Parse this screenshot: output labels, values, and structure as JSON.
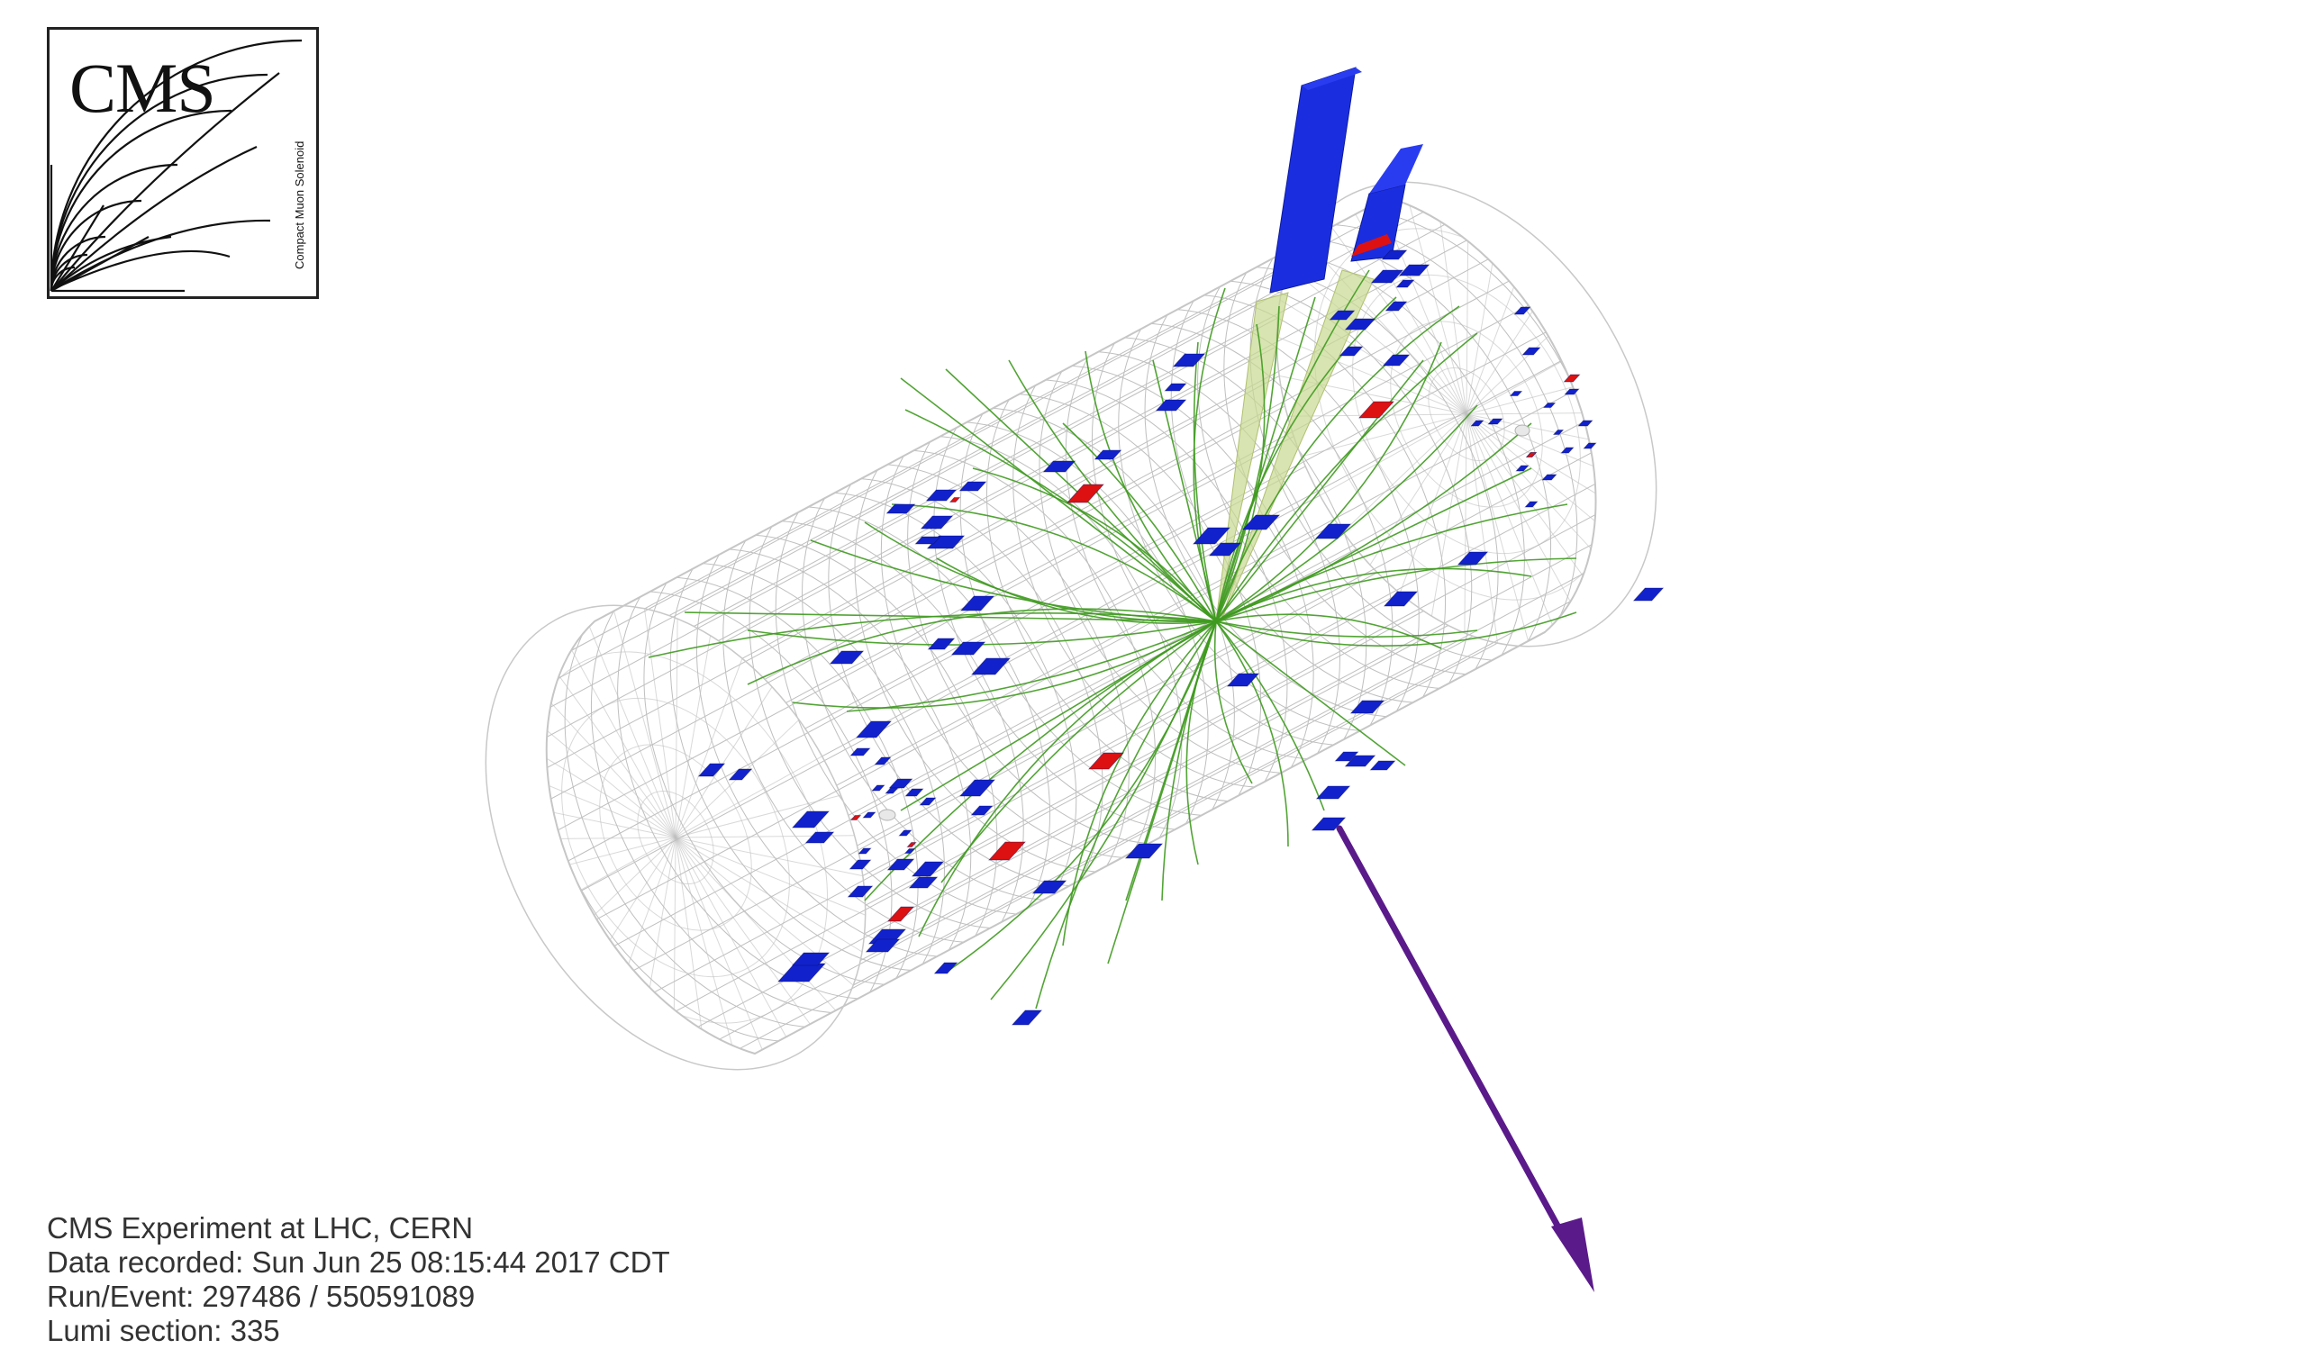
{
  "logo": {
    "text": "CMS",
    "subtext": "Compact Muon Solenoid"
  },
  "event_info": {
    "experiment": "CMS Experiment at LHC, CERN",
    "recorded": "Data recorded: Sun Jun 25 08:15:44 2017 CDT",
    "run_event": "Run/Event: 297486 / 550591089",
    "lumi_section": "Lumi section: 335"
  },
  "colors": {
    "track": "#3f9a1f",
    "ecal_deposit": "#dd1111",
    "hcal_deposit": "#1122cc",
    "jet_cone": "#c8d890",
    "missing_energy": "#5a1a8a",
    "detector_mesh": "#bfbfbf"
  }
}
